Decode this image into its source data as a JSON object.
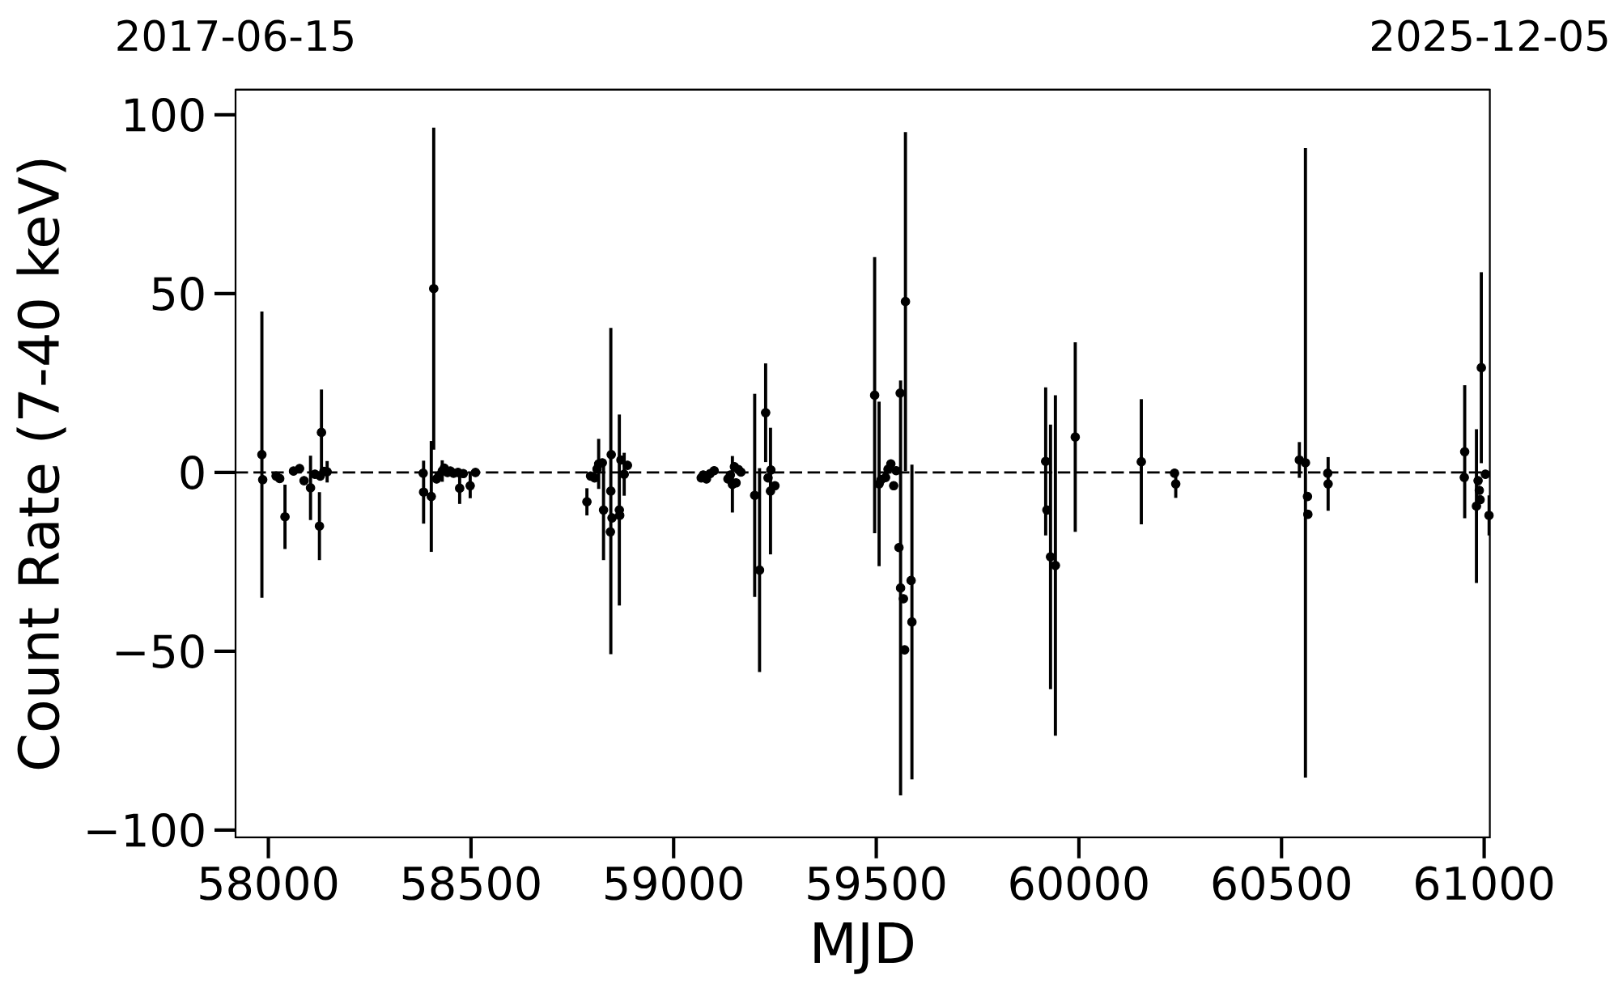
{
  "chart_data": {
    "type": "scatter",
    "xlabel": "MJD",
    "ylabel": "Count Rate (7-40 keV)",
    "x": [
      57984,
      57986,
      58019,
      58028,
      58041,
      58062,
      58077,
      58088,
      58104,
      58115,
      58126,
      58128,
      58131,
      58137,
      58145,
      58382,
      58383,
      58402,
      58408,
      58415,
      58421,
      58429,
      58434,
      58442,
      58449,
      58457,
      58468,
      58472,
      58481,
      58498,
      58511,
      58786,
      58795,
      58805,
      58811,
      58815,
      58824,
      58827,
      58844,
      58845,
      58846,
      58848,
      58866,
      58867,
      58870,
      58878,
      58886,
      59068,
      59073,
      59081,
      59090,
      59100,
      59134,
      59140,
      59145,
      59150,
      59154,
      59160,
      59166,
      59212,
      59200,
      59227,
      59239,
      59233,
      59240,
      59250,
      59496,
      59507,
      59512,
      59523,
      59529,
      59536,
      59543,
      59549,
      59556,
      59559,
      59560,
      59572,
      59567,
      59570,
      59588,
      59586,
      59921,
      59918,
      59930,
      59942,
      59991,
      60154,
      60236,
      60239,
      60544,
      60559,
      60564,
      60565,
      60614,
      60615,
      60951,
      60952,
      60985,
      60981,
      60993,
      60988,
      60990,
      61003,
      61012
    ],
    "values": [
      5,
      -2,
      -1,
      -1.7,
      -12.4,
      0.4,
      1.1,
      -2.3,
      -4.3,
      -0.5,
      -15,
      -1,
      11.2,
      0.3,
      0.2,
      -0.2,
      -5.5,
      -6.7,
      51.4,
      -1.8,
      -0.9,
      0.4,
      1.2,
      0,
      0.4,
      -0.2,
      0,
      -4.4,
      -0.3,
      -3.7,
      0,
      -8.2,
      -1,
      -1.5,
      1,
      2.4,
      2.7,
      -10.5,
      -16.6,
      -5.2,
      5,
      -12.7,
      -10.5,
      -12,
      3.5,
      -0.5,
      2,
      -1.5,
      -0.7,
      -1.8,
      -0.3,
      0.5,
      -1.8,
      -0.7,
      -3.3,
      1.6,
      -2.9,
      0.8,
      0.1,
      -27.3,
      -6.4,
      16.7,
      -5.2,
      -1.5,
      0.7,
      -3.7,
      21.6,
      -3.2,
      -2,
      -1.4,
      0.9,
      2.4,
      -3.7,
      0.5,
      -21,
      22.2,
      -32.3,
      47.8,
      -35.3,
      -49.6,
      -41.8,
      -30.2,
      -10.5,
      3.1,
      -23.6,
      -26,
      9.9,
      3,
      -0.2,
      -3.2,
      3.5,
      2.7,
      -6.7,
      -11.7,
      -0.2,
      -3.2,
      -1.4,
      5.8,
      -2.3,
      -9.4,
      29.3,
      -5,
      -7.6,
      -0.5,
      -12
    ],
    "errors": [
      40,
      null,
      null,
      null,
      9,
      null,
      null,
      null,
      9,
      null,
      9.5,
      null,
      12,
      null,
      3,
      null,
      8.8,
      15.5,
      45,
      null,
      null,
      3,
      null,
      null,
      null,
      null,
      null,
      4.4,
      null,
      3.5,
      null,
      3.8,
      null,
      null,
      null,
      7,
      null,
      14,
      null,
      45.6,
      null,
      null,
      26.7,
      null,
      null,
      6,
      null,
      null,
      null,
      null,
      null,
      null,
      null,
      null,
      7.9,
      null,
      null,
      null,
      null,
      28.5,
      28.4,
      13.8,
      17.7,
      null,
      null,
      null,
      38.6,
      23,
      null,
      null,
      null,
      null,
      null,
      null,
      null,
      null,
      58,
      47.4,
      null,
      null,
      44,
      null,
      null,
      20.7,
      37,
      47.6,
      26.5,
      17.5,
      null,
      3.9,
      5,
      88,
      null,
      null,
      null,
      7.5,
      null,
      18.6,
      null,
      21.5,
      26.7,
      null,
      null,
      null,
      5.6
    ],
    "color": "#000000",
    "marker": "circle",
    "xlim": [
      57919,
      61014
    ],
    "ylim": [
      -102,
      107
    ],
    "xticks": [
      58000,
      58500,
      59000,
      59500,
      60000,
      60500,
      61000
    ],
    "yticks": [
      {
        "value": -100,
        "label": "−100"
      },
      {
        "value": -50,
        "label": "−50"
      },
      0,
      50,
      100
    ],
    "x2lim": [
      "2017-06-15",
      "2025-12-05"
    ],
    "x2ticks": [
      "2017-06-15",
      "2025-12-05"
    ],
    "ref_lines": [
      {
        "axis": "y",
        "value": 0,
        "color": "#000000",
        "line_style": "dashed"
      }
    ]
  }
}
